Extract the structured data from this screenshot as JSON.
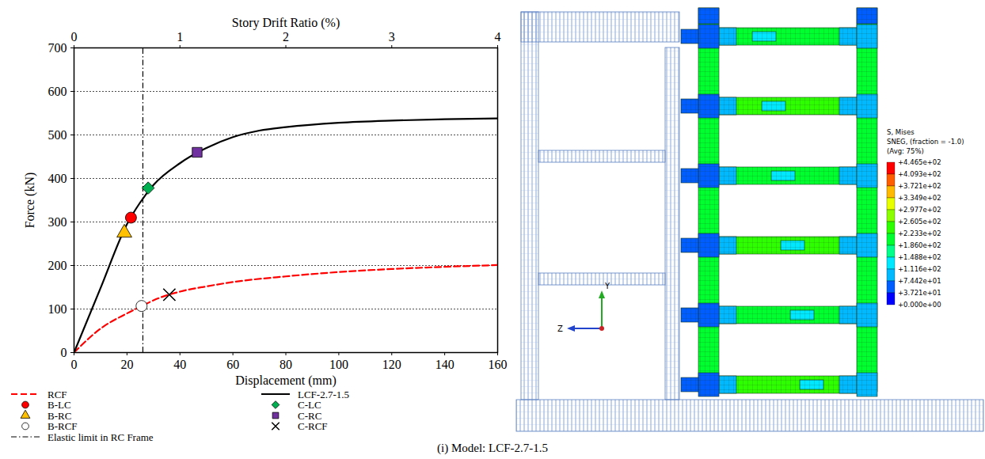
{
  "chart_data": {
    "type": "line",
    "x_label": "Displacement (mm)",
    "y_label": "Force (kN)",
    "x2_label": "Story Drift Ratio (%)",
    "xlim": [
      0,
      160
    ],
    "xticks": [
      0,
      20,
      40,
      60,
      80,
      100,
      120,
      140,
      160
    ],
    "x2lim": [
      0,
      4
    ],
    "x2ticks": [
      0,
      1,
      2,
      3,
      4
    ],
    "ylim": [
      0,
      700
    ],
    "yticks": [
      0,
      100,
      200,
      300,
      400,
      500,
      600,
      700
    ],
    "grid": true,
    "legend": "bottom",
    "series": [
      {
        "name": "RCF",
        "type": "line",
        "color": "#ff0000",
        "line_style": "dashed",
        "x": [
          0,
          10,
          20,
          26,
          30,
          40,
          50,
          60,
          80,
          100,
          120,
          140,
          160
        ],
        "values": [
          0,
          55,
          90,
          108,
          120,
          140,
          152,
          162,
          175,
          185,
          192,
          197,
          201
        ]
      },
      {
        "name": "LCF-2.7-1.5",
        "type": "line",
        "color": "#000000",
        "line_style": "solid",
        "x": [
          0,
          10,
          20,
          25,
          30,
          40,
          50,
          60,
          70,
          80,
          100,
          120,
          140,
          160
        ],
        "values": [
          0,
          148,
          295,
          345,
          385,
          435,
          470,
          495,
          510,
          518,
          528,
          533,
          536,
          538
        ]
      },
      {
        "name": "B-LC",
        "type": "scatter",
        "marker": "circle",
        "color": "#ff0000",
        "x": [
          21.5
        ],
        "values": [
          310
        ]
      },
      {
        "name": "C-LC",
        "type": "scatter",
        "marker": "diamond",
        "color": "#00b050",
        "x": [
          28
        ],
        "values": [
          378
        ]
      },
      {
        "name": "B-RC",
        "type": "scatter",
        "marker": "triangle",
        "color": "#ffc000",
        "x": [
          19
        ],
        "values": [
          275
        ]
      },
      {
        "name": "C-RC",
        "type": "scatter",
        "marker": "square",
        "color": "#7030a0",
        "x": [
          46.5
        ],
        "values": [
          460
        ]
      },
      {
        "name": "B-RCF",
        "type": "scatter",
        "marker": "circle",
        "color": "#ffffff",
        "x": [
          25.5
        ],
        "values": [
          107
        ]
      },
      {
        "name": "C-RCF",
        "type": "scatter",
        "marker": "times",
        "color": "#000000",
        "x": [
          36
        ],
        "values": [
          133
        ]
      },
      {
        "name": "Elastic limit in RC Frame",
        "type": "vline",
        "color": "#000000",
        "line_style": "dashdot",
        "x": [
          26
        ]
      }
    ],
    "caption": "(i) Model: LCF-2.7-1.5"
  },
  "fe_model": {
    "legend_title": [
      "S, Mises",
      "SNEG, (fraction = -1.0)",
      "(Avg: 75%)"
    ],
    "colorbar": {
      "ticks": [
        {
          "value": 446.5,
          "label": "+4.465e+02"
        },
        {
          "value": 409.3,
          "label": "+4.093e+02"
        },
        {
          "value": 372.1,
          "label": "+3.721e+02"
        },
        {
          "value": 334.9,
          "label": "+3.349e+02"
        },
        {
          "value": 297.7,
          "label": "+2.977e+02"
        },
        {
          "value": 260.5,
          "label": "+2.605e+02"
        },
        {
          "value": 223.3,
          "label": "+2.233e+02"
        },
        {
          "value": 186.0,
          "label": "+1.860e+02"
        },
        {
          "value": 148.8,
          "label": "+1.488e+02"
        },
        {
          "value": 111.6,
          "label": "+1.116e+02"
        },
        {
          "value": 74.42,
          "label": "+7.442e+01"
        },
        {
          "value": 37.21,
          "label": "+3.721e+01"
        },
        {
          "value": 0,
          "label": "+0.000e+00"
        }
      ],
      "colors": [
        "#ff0000",
        "#ff5d00",
        "#ffb900",
        "#e8ff00",
        "#8bff00",
        "#2eff00",
        "#00ff2e",
        "#00ff8b",
        "#00e8ff",
        "#00b9ff",
        "#005dff",
        "#0000ff"
      ]
    },
    "triad": [
      "Y",
      "Z"
    ]
  }
}
